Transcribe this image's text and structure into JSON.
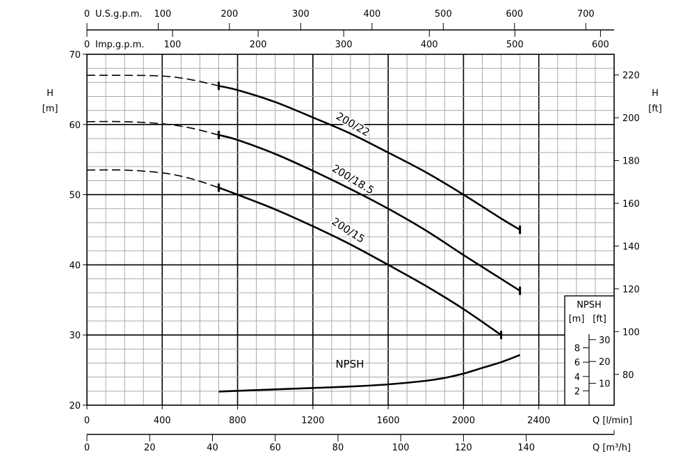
{
  "chart_data": {
    "type": "line",
    "title": "",
    "xlabel": "Q [l/min]",
    "xlabel_m3h": "Q [m³/h]",
    "ylabel_left": "H",
    "ylabel_left_unit": "[m]",
    "ylabel_right": "H",
    "ylabel_right_unit": "[ft]",
    "xlim": [
      0,
      2800
    ],
    "ylim": [
      20,
      70
    ],
    "grid": true,
    "x_ticks": [
      0,
      400,
      800,
      1200,
      1600,
      2000,
      2400
    ],
    "y_ticks": [
      20,
      30,
      40,
      50,
      60,
      70
    ],
    "ft_ticks": [
      80,
      100,
      120,
      140,
      160,
      180,
      200,
      220
    ],
    "m3h_ticks": [
      0,
      20,
      40,
      60,
      80,
      100,
      120,
      140
    ],
    "usgpm_label": "U.S.g.p.m.",
    "usgpm_ticks": [
      0,
      100,
      200,
      300,
      400,
      500,
      600,
      700
    ],
    "impgpm_label": "Imp.g.p.m.",
    "impgpm_ticks": [
      0,
      100,
      200,
      300,
      400,
      500,
      600
    ],
    "series": [
      {
        "name": "200/22",
        "dashed": {
          "x": [
            0,
            200,
            400,
            550,
            700
          ],
          "y": [
            67,
            67,
            66.9,
            66.4,
            65.5
          ]
        },
        "x": [
          700,
          800,
          1000,
          1200,
          1400,
          1600,
          1800,
          2000,
          2200,
          2300
        ],
        "y": [
          65.5,
          64.9,
          63.2,
          61,
          58.7,
          56,
          53.2,
          50,
          46.6,
          45
        ]
      },
      {
        "name": "200/18.5",
        "dashed": {
          "x": [
            0,
            200,
            400,
            550,
            700
          ],
          "y": [
            60.4,
            60.4,
            60.1,
            59.5,
            58.5
          ]
        },
        "x": [
          700,
          800,
          1000,
          1200,
          1400,
          1600,
          1800,
          2000,
          2200,
          2300
        ],
        "y": [
          58.5,
          57.8,
          55.8,
          53.4,
          50.8,
          48,
          44.9,
          41.4,
          38,
          36.3
        ]
      },
      {
        "name": "200/15",
        "dashed": {
          "x": [
            0,
            200,
            400,
            550,
            700
          ],
          "y": [
            53.5,
            53.5,
            53.1,
            52.3,
            51
          ]
        },
        "x": [
          700,
          800,
          1000,
          1200,
          1400,
          1600,
          1800,
          2000,
          2200
        ],
        "y": [
          51,
          50,
          47.9,
          45.5,
          42.9,
          40,
          37,
          33.7,
          30
        ]
      },
      {
        "name": "NPSH",
        "x": [
          700,
          1000,
          1200,
          1400,
          1600,
          1800,
          1900,
          2000,
          2100,
          2200,
          2300
        ],
        "y": [
          1.9,
          2.2,
          2.4,
          2.6,
          2.9,
          3.4,
          3.8,
          4.4,
          5.2,
          6.0,
          7.0
        ],
        "unit": "m"
      }
    ],
    "npsh_inset": {
      "title": "NPSH",
      "unit_m": "[m]",
      "unit_ft": "[ft]",
      "m_ticks": [
        2,
        4,
        6,
        8
      ],
      "ft_ticks": [
        10,
        20,
        30
      ]
    }
  },
  "colors": {
    "line": "#000000",
    "grid_minor": "#9a9a9a",
    "grid_major": "#000000"
  }
}
